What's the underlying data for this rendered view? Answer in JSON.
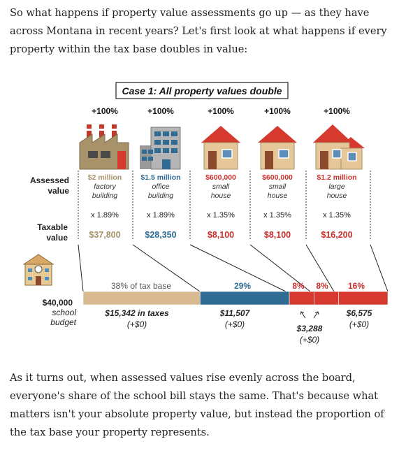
{
  "intro_text": "So what happens if property value assessments go up — as they have across Montana in recent years? Let's first look at what happens if every property within the tax base doubles in value:",
  "outro_text": "As it turns out, when assessed values rise evenly across the board, everyone's share of the school bill stays the same. That's because what matters isn't your absolute property value, but instead the proportion of the tax base your property represents.",
  "case_title": "Case 1: All property values double",
  "row_labels": {
    "assessed": "Assessed value",
    "taxable": "Taxable value",
    "budget_amount": "$40,000",
    "budget_label_1": "school",
    "budget_label_2": "budget"
  },
  "properties": [
    {
      "id": "factory",
      "change": "+100%",
      "value": "$2 million",
      "type": "factory building",
      "rate": "x 1.89%",
      "taxable": "$37,800",
      "color": "#a8926a",
      "icon": "factory-icon"
    },
    {
      "id": "office",
      "change": "+100%",
      "value": "$1.5 million",
      "type": "office building",
      "rate": "x 1.89%",
      "taxable": "$28,350",
      "color": "#2f6b93",
      "icon": "office-building-icon"
    },
    {
      "id": "small1",
      "change": "+100%",
      "value": "$600,000",
      "type": "small house",
      "rate": "x 1.35%",
      "taxable": "$8,100",
      "color": "#c9302c",
      "icon": "house-icon"
    },
    {
      "id": "small2",
      "change": "+100%",
      "value": "$600,000",
      "type": "small house",
      "rate": "x 1.35%",
      "taxable": "$8,100",
      "color": "#c9302c",
      "icon": "house-icon"
    },
    {
      "id": "large",
      "change": "+100%",
      "value": "$1.2 million",
      "type": "large house",
      "rate": "x 1.35%",
      "taxable": "$16,200",
      "color": "#c9302c",
      "icon": "large-house-icon"
    }
  ],
  "shares": [
    {
      "label": "38% of tax base",
      "pct": 38,
      "color": "#d9b98f",
      "text_color": "#555555"
    },
    {
      "label": "29%",
      "pct": 29,
      "color": "#2f6b93",
      "text_color": "#2f6b93"
    },
    {
      "label": "8%",
      "pct": 8,
      "color": "#d63a2f",
      "text_color": "#c9302c"
    },
    {
      "label": "8%",
      "pct": 8,
      "color": "#d63a2f",
      "text_color": "#c9302c"
    },
    {
      "label": "16%",
      "pct": 16,
      "color": "#d63a2f",
      "text_color": "#c9302c"
    }
  ],
  "taxes": [
    {
      "amount": "$15,342 in taxes",
      "change": "(+$0)"
    },
    {
      "amount": "$11,507",
      "change": "(+$0)"
    },
    {
      "amount": "$3,288",
      "change": "(+$0)"
    },
    {
      "amount": "$6,575",
      "change": "(+$0)"
    }
  ],
  "colors": {
    "commercial_tan": "#a8926a",
    "office_blue": "#2f6b93",
    "residential_red": "#c9302c"
  }
}
